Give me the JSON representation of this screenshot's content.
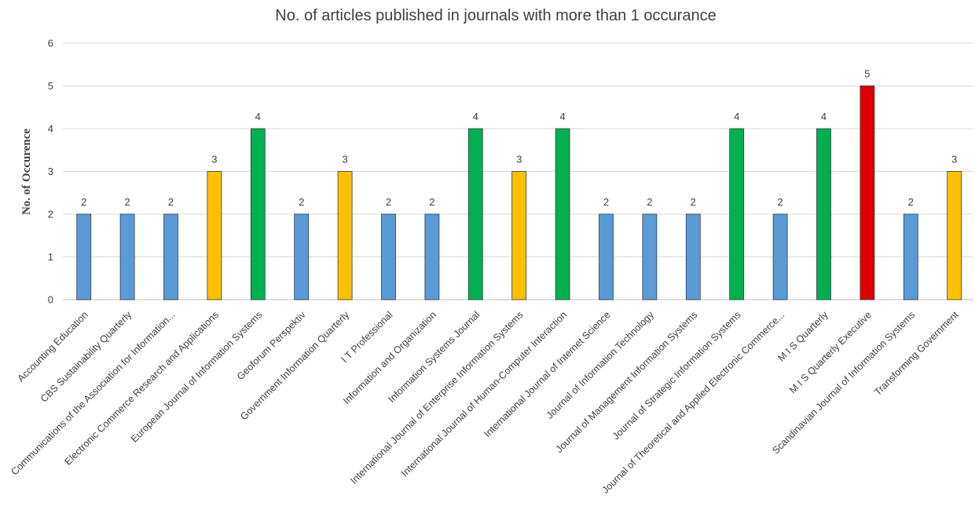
{
  "chart_data": {
    "type": "bar",
    "title": "No. of articles published in journals with more than 1 occurance",
    "xlabel": "",
    "ylabel": "No. of Occurence",
    "ylim": [
      0,
      6
    ],
    "yticks": [
      0,
      1,
      2,
      3,
      4,
      5,
      6
    ],
    "grid": true,
    "categories": [
      "Accounting Education",
      "CBS Sustainability Quarterly",
      "Communications of the Association for Information...",
      "Electronic Commerce Research and Applications",
      "European Journal of Information Systems",
      "Geoforum Perspektiv",
      "Government Information Quarterly",
      "I T Professional",
      "Information and Organization",
      "Information Systems Journal",
      "International Journal of Enterprise Information Systems",
      "International Journal of Human-Computer Interaction",
      "International Journal of Internet Science",
      "Journal of Information Technology",
      "Journal of Management Information Systems",
      "Journal of Strategic Information Systems",
      "Journal of Theoretical and Applied Electronic Commerce...",
      "M I S Quarterly",
      "M I S Quarterly Executive",
      "Scandinavian Journal of Information Systems",
      "Transforming Government"
    ],
    "values": [
      2,
      2,
      2,
      3,
      4,
      2,
      3,
      2,
      2,
      4,
      3,
      4,
      2,
      2,
      2,
      4,
      2,
      4,
      5,
      2,
      3
    ],
    "colors_by_value": {
      "2": "#5b9bd5",
      "3": "#ffc000",
      "4": "#00b050",
      "5": "#e00000"
    }
  }
}
